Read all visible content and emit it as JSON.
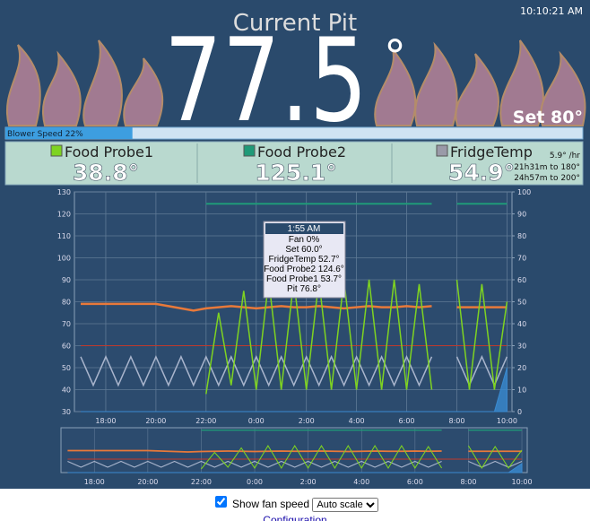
{
  "clock": "10:10:21 AM",
  "header": {
    "title": "Current Pit",
    "pit_temp": "77.5",
    "degree": "°",
    "setpoint": "Set 80°"
  },
  "blower": {
    "label": "Blower Speed 22%",
    "value": 22
  },
  "probes": [
    {
      "name": "Food Probe1",
      "temp": "38.8°",
      "color": "#7ed321"
    },
    {
      "name": "Food Probe2",
      "temp": "125.1°",
      "color": "#1f9a78"
    },
    {
      "name": "FridgeTemp",
      "temp": "54.9°",
      "color": "#9a9aa8",
      "rate": "5.9° /hr",
      "eta": [
        "21h31m to 180°",
        "24h57m to 200°"
      ]
    }
  ],
  "tooltip": {
    "title": "1:55 AM",
    "lines": [
      "Fan 0%",
      "Set 60.0°",
      "FridgeTemp 52.7°",
      "Food Probe2 124.6°",
      "Food Probe1 53.7°",
      "Pit 76.8°"
    ]
  },
  "chart_data": {
    "type": "line",
    "x": [
      17,
      17.5,
      18,
      18.5,
      19,
      19.5,
      20,
      20.5,
      21,
      21.5,
      22,
      22.5,
      23,
      23.5,
      24,
      24.5,
      25,
      25.5,
      26,
      26.5,
      27,
      27.5,
      28,
      28.5,
      29,
      29.5,
      30,
      30.5,
      31,
      31.5,
      32,
      32.5,
      33,
      33.5,
      34
    ],
    "xlim": [
      16.75,
      34.2
    ],
    "xticks": [
      {
        "value": 18,
        "label": "18:00"
      },
      {
        "value": 20,
        "label": "20:00"
      },
      {
        "value": 22,
        "label": "22:00"
      },
      {
        "value": 24,
        "label": "0:00"
      },
      {
        "value": 26,
        "label": "2:00"
      },
      {
        "value": 28,
        "label": "4:00"
      },
      {
        "value": 30,
        "label": "6:00"
      },
      {
        "value": 32,
        "label": "8:00"
      },
      {
        "value": 34,
        "label": "10:00"
      }
    ],
    "ylim": [
      30,
      130
    ],
    "yticks": [
      30,
      40,
      50,
      60,
      70,
      80,
      90,
      100,
      110,
      120,
      130
    ],
    "y2lim": [
      0,
      100
    ],
    "y2ticks": [
      0,
      10,
      20,
      30,
      40,
      50,
      60,
      70,
      80,
      90,
      100
    ],
    "grid": true,
    "series": [
      {
        "color": "#e8793a",
        "width": 2.5,
        "values": [
          79,
          79,
          79,
          79,
          79,
          79,
          79,
          78,
          77,
          76,
          77,
          77.5,
          78,
          77.5,
          77,
          77.5,
          78,
          77.5,
          77.5,
          78,
          77.5,
          77,
          77.5,
          78,
          77.5,
          77.5,
          78,
          77.5,
          78,
          null,
          77.5,
          77.5,
          77.5,
          77.5,
          77.5
        ]
      },
      {
        "color": "#c0392b",
        "width": 1,
        "values": [
          60,
          60,
          60,
          60,
          60,
          60,
          60,
          60,
          60,
          60,
          60,
          60,
          60,
          60,
          60,
          60,
          60,
          60,
          60,
          60,
          60,
          60,
          60,
          60,
          60,
          60,
          60,
          60,
          60,
          60,
          60,
          60,
          60,
          60,
          60
        ]
      },
      {
        "color": "#1f9a78",
        "width": 2,
        "values": [
          null,
          null,
          null,
          null,
          null,
          null,
          null,
          null,
          null,
          null,
          124.6,
          124.6,
          124.6,
          124.6,
          124.6,
          124.6,
          124.6,
          124.6,
          124.6,
          124.6,
          124.6,
          124.6,
          124.6,
          124.6,
          124.6,
          124.6,
          124.6,
          124.6,
          124.6,
          null,
          124.6,
          124.6,
          124.6,
          124.6,
          124.6
        ]
      },
      {
        "color": "#a8b4cc",
        "width": 1.5,
        "values": [
          55,
          42,
          55,
          42,
          55,
          42,
          55,
          42,
          55,
          42,
          55,
          42,
          55,
          42,
          55,
          42,
          55,
          42,
          55,
          42,
          55,
          42,
          55,
          42,
          55,
          42,
          55,
          42,
          55,
          null,
          55,
          42,
          55,
          42,
          55
        ]
      },
      {
        "color": "#7ed321",
        "width": 1.5,
        "values": [
          null,
          null,
          null,
          null,
          null,
          null,
          null,
          null,
          null,
          null,
          38,
          75,
          42,
          85,
          40,
          90,
          40,
          90,
          40,
          90,
          40,
          90,
          40,
          90,
          40,
          90,
          40,
          88,
          40,
          null,
          90,
          40,
          88,
          40,
          80
        ]
      },
      {
        "color": "#3a8ad0",
        "width": 1,
        "axis": "y2",
        "area": true,
        "values": [
          0,
          0,
          0,
          0,
          0,
          0,
          0,
          0,
          0,
          0,
          0,
          0,
          0,
          0,
          0,
          0,
          0,
          0,
          0,
          0,
          0,
          0,
          0,
          0,
          0,
          0,
          0,
          0,
          0,
          0,
          0,
          0,
          0,
          0,
          20
        ]
      }
    ]
  },
  "controls": {
    "show_fan_speed": true,
    "checkbox_label": "Show fan speed",
    "scale_option": "Auto scale",
    "link": "Configuration"
  }
}
